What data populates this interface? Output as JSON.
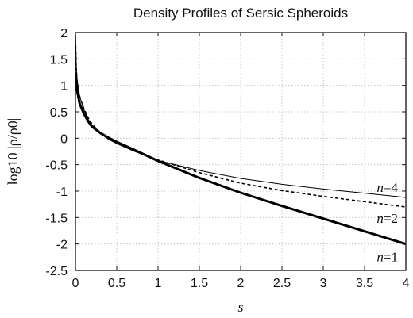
{
  "chart_data": {
    "type": "line",
    "title": "Density Profiles of Sersic Spheroids",
    "xlabel": "s",
    "ylabel": "log10 |ρ/ρ0|",
    "xlim": [
      0,
      4
    ],
    "ylim": [
      -2.5,
      2
    ],
    "xticks": [
      "0",
      "0.5",
      "1",
      "1.5",
      "2",
      "2.5",
      "3",
      "3.5",
      "4"
    ],
    "yticks": [
      "2",
      "1.5",
      "1",
      "0.5",
      "0",
      "-0.5",
      "-1",
      "-1.5",
      "-2",
      "-2.5"
    ],
    "grid": true,
    "series": [
      {
        "name": "n=1",
        "style": "solid-thick",
        "points": [
          [
            0.005,
            1.25
          ],
          [
            0.02,
            0.9
          ],
          [
            0.05,
            0.66
          ],
          [
            0.1,
            0.47
          ],
          [
            0.15,
            0.33
          ],
          [
            0.2,
            0.22
          ],
          [
            0.3,
            0.1
          ],
          [
            0.4,
            0.01
          ],
          [
            0.5,
            -0.07
          ],
          [
            0.7,
            -0.21
          ],
          [
            1.0,
            -0.43
          ],
          [
            1.5,
            -0.75
          ],
          [
            2.0,
            -1.03
          ],
          [
            2.5,
            -1.28
          ],
          [
            3.0,
            -1.52
          ],
          [
            3.5,
            -1.76
          ],
          [
            4.0,
            -2.0
          ]
        ]
      },
      {
        "name": "n=2",
        "style": "dashed",
        "points": [
          [
            0.003,
            1.75
          ],
          [
            0.01,
            1.3
          ],
          [
            0.02,
            1.05
          ],
          [
            0.05,
            0.8
          ],
          [
            0.1,
            0.57
          ],
          [
            0.15,
            0.4
          ],
          [
            0.2,
            0.27
          ],
          [
            0.3,
            0.11
          ],
          [
            0.4,
            -0.01
          ],
          [
            0.5,
            -0.09
          ],
          [
            0.7,
            -0.23
          ],
          [
            1.0,
            -0.41
          ],
          [
            1.5,
            -0.65
          ],
          [
            2.0,
            -0.85
          ],
          [
            2.5,
            -0.99
          ],
          [
            3.0,
            -1.1
          ],
          [
            3.5,
            -1.2
          ],
          [
            4.0,
            -1.3
          ]
        ]
      },
      {
        "name": "n=4",
        "style": "solid-thin",
        "points": [
          [
            0.002,
            1.95
          ],
          [
            0.01,
            1.35
          ],
          [
            0.02,
            1.1
          ],
          [
            0.05,
            0.8
          ],
          [
            0.1,
            0.55
          ],
          [
            0.15,
            0.37
          ],
          [
            0.2,
            0.25
          ],
          [
            0.3,
            0.09
          ],
          [
            0.4,
            -0.02
          ],
          [
            0.5,
            -0.1
          ],
          [
            0.7,
            -0.24
          ],
          [
            1.0,
            -0.42
          ],
          [
            1.5,
            -0.61
          ],
          [
            2.0,
            -0.76
          ],
          [
            2.5,
            -0.87
          ],
          [
            3.0,
            -0.96
          ],
          [
            3.5,
            -1.04
          ],
          [
            4.0,
            -1.12
          ]
        ]
      }
    ],
    "curve_labels": [
      {
        "text": "n=4",
        "series": "n=4"
      },
      {
        "text": "n=2",
        "series": "n=2"
      },
      {
        "text": "n=1",
        "series": "n=1"
      }
    ]
  }
}
